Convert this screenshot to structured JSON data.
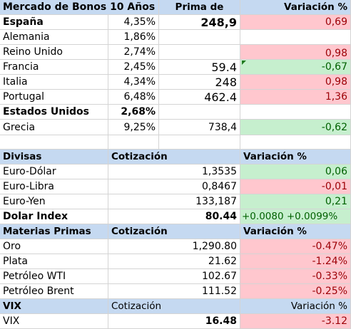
{
  "bonds": {
    "header": {
      "title": "Mercado de Bonos 10 Años",
      "premium": "Prima de",
      "change": "Variación %"
    },
    "rows": [
      {
        "country": "España",
        "rate": "4,35%",
        "premium": "248,9",
        "change": "0,69"
      },
      {
        "country": "Alemania",
        "rate": "1,86%",
        "premium": "",
        "change": ""
      },
      {
        "country": "Reino Unido",
        "rate": "2,74%",
        "premium": "",
        "change": "0,98"
      },
      {
        "country": "Francia",
        "rate": "2,45%",
        "premium": "59.4",
        "change": "-0,67"
      },
      {
        "country": "Italia",
        "rate": "4,34%",
        "premium": "248",
        "change": "0,98"
      },
      {
        "country": "Portugal",
        "rate": "6,48%",
        "premium": "462.4",
        "change": "1,36"
      },
      {
        "country": "Estados Unidos",
        "rate": "2,68%",
        "premium": "",
        "change": ""
      },
      {
        "country": "Grecia",
        "rate": "9,25%",
        "premium": "738,4",
        "change": "-0,62"
      }
    ]
  },
  "currencies": {
    "header": {
      "title": "Divisas",
      "quote": "Cotización",
      "change": "Variación %"
    },
    "rows": [
      {
        "name": "Euro-Dólar",
        "quote": "1,3535",
        "change": "0,06"
      },
      {
        "name": "Euro-Libra",
        "quote": "0,8467",
        "change": "-0,01"
      },
      {
        "name": "Euro-Yen",
        "quote": "133,187",
        "change": "0,21"
      },
      {
        "name": "Dolar Index",
        "quote": "80.44",
        "change": "+0.0080 +0.0099%"
      }
    ]
  },
  "commodities": {
    "header": {
      "title": "Materias Primas",
      "quote": "Cotización",
      "change": "Variación %"
    },
    "rows": [
      {
        "name": "Oro",
        "quote": "1,290.80",
        "change": "-0.47%"
      },
      {
        "name": "Plata",
        "quote": "21.62",
        "change": "-1.24%"
      },
      {
        "name": "Petróleo WTI",
        "quote": "102.67",
        "change": "-0.33%"
      },
      {
        "name": "Petróleo Brent",
        "quote": "111.52",
        "change": "-0.25%"
      }
    ]
  },
  "vix": {
    "header": {
      "title": "VIX",
      "quote": "Cotización",
      "change": "Variación %"
    },
    "rows": [
      {
        "name": "VIX",
        "quote": "16.48",
        "change": "-3.12"
      }
    ]
  },
  "colors": {
    "header_bg": "#c5d9f1",
    "negative_bg": "#ffc7ce",
    "positive_bg": "#c6efce",
    "grid": "#d4d4d4"
  }
}
